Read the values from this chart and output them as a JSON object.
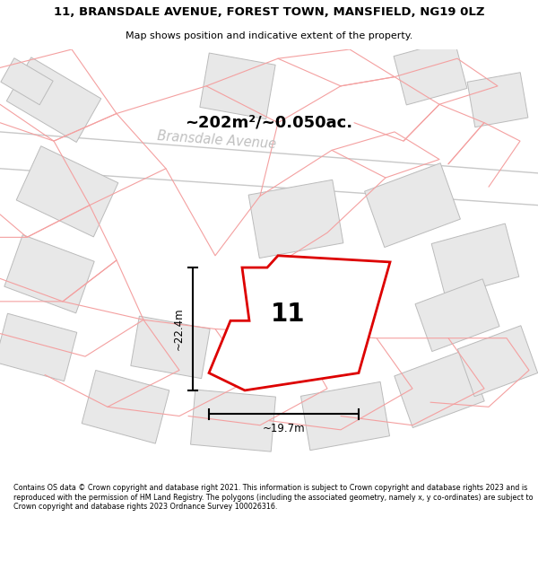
{
  "title_line1": "11, BRANSDALE AVENUE, FOREST TOWN, MANSFIELD, NG19 0LZ",
  "title_line2": "Map shows position and indicative extent of the property.",
  "street_label": "Bransdale Avenue",
  "area_label": "~202m²/~0.050ac.",
  "plot_number": "11",
  "dim_height": "~22.4m",
  "dim_width": "~19.7m",
  "footer_text": "Contains OS data © Crown copyright and database right 2021. This information is subject to Crown copyright and database rights 2023 and is reproduced with the permission of HM Land Registry. The polygons (including the associated geometry, namely x, y co-ordinates) are subject to Crown copyright and database rights 2023 Ordnance Survey 100026316.",
  "bg_color": "#f7f7f7",
  "highlight_color": "#dd0000",
  "building_fill": "#e8e8e8",
  "building_edge": "#bbbbbb",
  "road_line_color": "#bbbbbb",
  "boundary_color": "#f4a0a0",
  "highlight_fill": "#ffffff",
  "text_color_street": "#c0c0c0"
}
